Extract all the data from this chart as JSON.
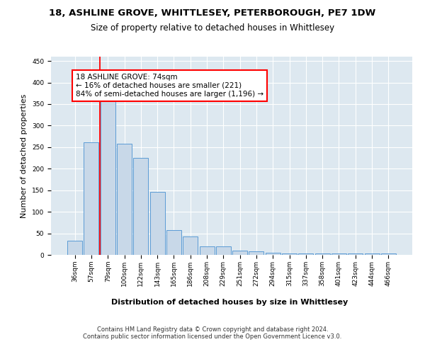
{
  "title_line1": "18, ASHLINE GROVE, WHITTLESEY, PETERBOROUGH, PE7 1DW",
  "title_line2": "Size of property relative to detached houses in Whittlesey",
  "xlabel": "Distribution of detached houses by size in Whittlesey",
  "ylabel": "Number of detached properties",
  "bar_labels": [
    "36sqm",
    "57sqm",
    "79sqm",
    "100sqm",
    "122sqm",
    "143sqm",
    "165sqm",
    "186sqm",
    "208sqm",
    "229sqm",
    "251sqm",
    "272sqm",
    "294sqm",
    "315sqm",
    "337sqm",
    "358sqm",
    "401sqm",
    "423sqm",
    "444sqm",
    "466sqm"
  ],
  "bar_values": [
    33,
    262,
    358,
    258,
    225,
    147,
    57,
    43,
    20,
    20,
    10,
    8,
    5,
    4,
    4,
    4,
    4,
    4,
    4,
    4
  ],
  "bar_color": "#c8d8e8",
  "bar_edge_color": "#5b9bd5",
  "background_color": "#dde8f0",
  "annotation_text": "18 ASHLINE GROVE: 74sqm\n← 16% of detached houses are smaller (221)\n84% of semi-detached houses are larger (1,196) →",
  "red_line_x": 2,
  "ylim": [
    0,
    460
  ],
  "yticks": [
    0,
    50,
    100,
    150,
    200,
    250,
    300,
    350,
    400,
    450
  ],
  "footer_line1": "Contains HM Land Registry data © Crown copyright and database right 2024.",
  "footer_line2": "Contains public sector information licensed under the Open Government Licence v3.0.",
  "title_fontsize": 9.5,
  "subtitle_fontsize": 8.5,
  "tick_fontsize": 6.5,
  "ylabel_fontsize": 8,
  "xlabel_fontsize": 8,
  "annotation_fontsize": 7.5,
  "footer_fontsize": 6
}
